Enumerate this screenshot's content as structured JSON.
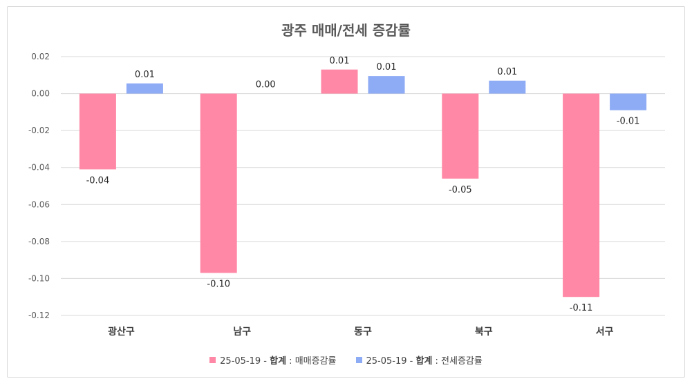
{
  "chart_data": {
    "type": "bar",
    "title": "광주 매매/전세 증감률",
    "categories": [
      "광산구",
      "남구",
      "동구",
      "북구",
      "서구"
    ],
    "series": [
      {
        "name": "25-05-19 - 합계 : 매매증감률",
        "name_prefix": "25-05-19 - ",
        "name_bold": "합계",
        "name_suffix": " : 매매증감률",
        "color": "#ff88a6",
        "values": [
          -0.041,
          -0.097,
          0.013,
          -0.046,
          -0.11
        ],
        "labels": [
          "-0.04",
          "-0.10",
          "0.01",
          "-0.05",
          "-0.11"
        ]
      },
      {
        "name": "25-05-19 - 합계 : 전세증감률",
        "name_prefix": "25-05-19 - ",
        "name_bold": "합계",
        "name_suffix": " : 전세증감률",
        "color": "#8eabf5",
        "values": [
          0.0055,
          0.0,
          0.0095,
          0.007,
          -0.009
        ],
        "labels": [
          "0.01",
          "0.00",
          "0.01",
          "0.01",
          "-0.01"
        ]
      }
    ],
    "ylim": [
      -0.12,
      0.02
    ],
    "yticks": [
      "0.02",
      "0.00",
      "-0.02",
      "-0.04",
      "-0.06",
      "-0.08",
      "-0.10",
      "-0.12"
    ],
    "grid": true,
    "legend_position": "bottom"
  }
}
